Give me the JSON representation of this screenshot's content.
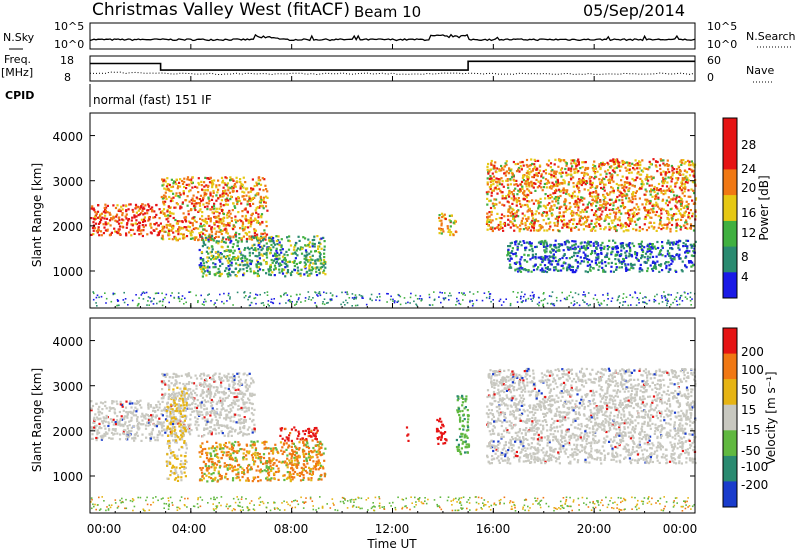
{
  "header": {
    "station": "Christmas Valley West (fitACF)",
    "beam": "Beam 10",
    "date": "05/Sep/2014"
  },
  "strip": {
    "nsky_label": "N.Sky",
    "nsearch_label": "N.Search",
    "nsky_ticks": [
      "10^5",
      "10^0"
    ],
    "nsearch_ticks": [
      "10^5",
      "10^0"
    ],
    "freq_label_1": "Freq.",
    "freq_label_2": "[MHz]",
    "freq_ticks": [
      "18",
      "8"
    ],
    "nave_label": "Nave",
    "nave_ticks": [
      "60",
      "0"
    ],
    "cpid_label": "CPID",
    "cpid_text": "normal (fast) 151 IF"
  },
  "axes": {
    "ylabel": "Slant Range [km]",
    "xlabel": "Time UT",
    "yticks": [
      "1000",
      "2000",
      "3000",
      "4000"
    ],
    "xticks": [
      "00:00",
      "04:00",
      "08:00",
      "12:00",
      "16:00",
      "20:00",
      "00:00"
    ]
  },
  "colorbars": {
    "power": {
      "label": "Power [dB]",
      "ticks": [
        "4",
        "8",
        "12",
        "16",
        "20",
        "24",
        "28"
      ],
      "colors": [
        "#1a1ae6",
        "#2a8a70",
        "#40b040",
        "#e6c814",
        "#f07814",
        "#e61414",
        "#e61414"
      ]
    },
    "velocity": {
      "label": "Velocity [m s⁻¹]",
      "ticks": [
        "200",
        "100",
        "50",
        "15",
        "-15",
        "-50",
        "-100",
        "-200"
      ],
      "colors": [
        "#1a3ccc",
        "#2a8a70",
        "#60b840",
        "#c8c8c0",
        "#e6b414",
        "#f07814",
        "#e61414"
      ]
    }
  },
  "chart_data": [
    {
      "type": "line",
      "title": "N.Sky / N.Search",
      "x": [
        "00:00",
        "04:00",
        "08:00",
        "12:00",
        "16:00",
        "20:00",
        "00:00"
      ],
      "ylim": [
        1,
        100000
      ],
      "log_scale": true,
      "series": [
        {
          "name": "N.Sky",
          "values": [
            30,
            40,
            100,
            60,
            300,
            40,
            30
          ]
        }
      ]
    },
    {
      "type": "line",
      "title": "Freq. [MHz]",
      "x_hours": [
        0,
        2.8,
        2.8,
        15.0,
        15.0,
        24
      ],
      "ylim": [
        8,
        18
      ],
      "series": [
        {
          "name": "Freq.",
          "values": [
            15.5,
            15.5,
            12.5,
            12.5,
            16.5,
            16.5
          ]
        }
      ]
    },
    {
      "type": "heatmap",
      "title": "Power [dB]",
      "xlim_hours": [
        0,
        24
      ],
      "ylim_km": [
        180,
        4500
      ],
      "zlim": [
        0,
        30
      ],
      "regions": [
        {
          "t": [
            0,
            2.8
          ],
          "r": [
            1800,
            2500
          ],
          "power": 26
        },
        {
          "t": [
            2.8,
            7.0
          ],
          "r": [
            1700,
            3100
          ],
          "power": 20
        },
        {
          "t": [
            4.3,
            9.3
          ],
          "r": [
            900,
            1800
          ],
          "power": 10
        },
        {
          "t": [
            13.8,
            14.5
          ],
          "r": [
            1800,
            2300
          ],
          "power": 22
        },
        {
          "t": [
            15.7,
            24
          ],
          "r": [
            1900,
            3500
          ],
          "power": 24
        },
        {
          "t": [
            16.5,
            24
          ],
          "r": [
            1000,
            1700
          ],
          "power": 8
        }
      ]
    },
    {
      "type": "heatmap",
      "title": "Velocity [m s⁻¹]",
      "xlim_hours": [
        0,
        24
      ],
      "ylim_km": [
        180,
        4500
      ],
      "zlim": [
        -200,
        200
      ],
      "regions": [
        {
          "t": [
            0,
            2.8
          ],
          "r": [
            1800,
            2700
          ],
          "velocity": 0
        },
        {
          "t": [
            2.8,
            6.5
          ],
          "r": [
            1900,
            3300
          ],
          "velocity": 0
        },
        {
          "t": [
            3.0,
            3.8
          ],
          "r": [
            900,
            3000
          ],
          "velocity": -40
        },
        {
          "t": [
            4.3,
            9.3
          ],
          "r": [
            900,
            1800
          ],
          "velocity": -60
        },
        {
          "t": [
            7.5,
            9.0
          ],
          "r": [
            1800,
            2100
          ],
          "velocity": -200
        },
        {
          "t": [
            12.5,
            12.6
          ],
          "r": [
            1800,
            2100
          ],
          "velocity": -200
        },
        {
          "t": [
            13.7,
            14.1
          ],
          "r": [
            1700,
            2300
          ],
          "velocity": -150
        },
        {
          "t": [
            14.5,
            15.0
          ],
          "r": [
            1500,
            2800
          ],
          "velocity": 50
        },
        {
          "t": [
            15.7,
            24
          ],
          "r": [
            1300,
            3400
          ],
          "velocity": 0
        }
      ]
    }
  ]
}
